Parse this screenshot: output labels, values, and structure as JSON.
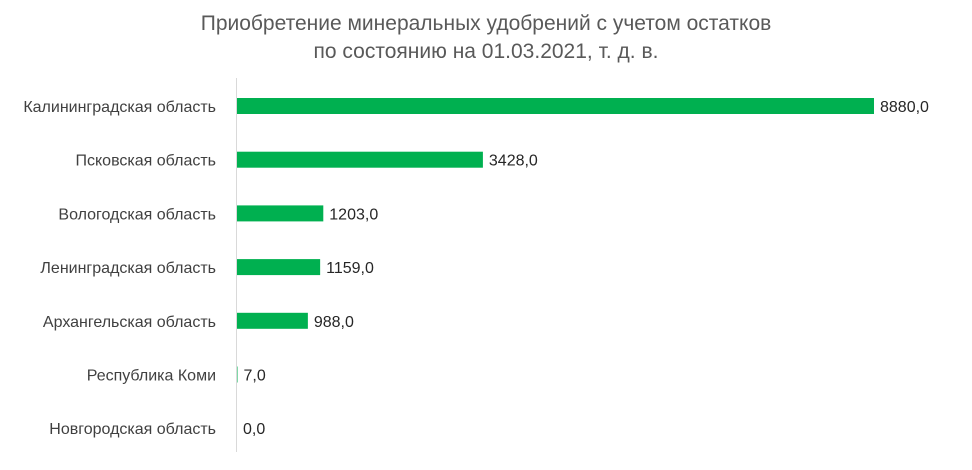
{
  "chart_data": {
    "type": "bar",
    "orientation": "horizontal",
    "title_lines": [
      "Приобретение минеральных удобрений с учетом остатков",
      "по состоянию на 01.03.2021, т. д. в."
    ],
    "categories": [
      "Калининградская область",
      "Псковская область",
      "Вологодская область",
      "Ленинградская область",
      "Архангельская область",
      "Республика Коми",
      "Новгородская область"
    ],
    "values": [
      8880,
      3428,
      1203,
      1159,
      988,
      7,
      0
    ],
    "value_labels": [
      "8880,0",
      "3428,0",
      "1203,0",
      "1159,0",
      "988,0",
      "7,0",
      "0,0"
    ],
    "xlim": [
      0,
      8880
    ],
    "grid": false,
    "legend": "none",
    "bar_color": "#00b050"
  }
}
